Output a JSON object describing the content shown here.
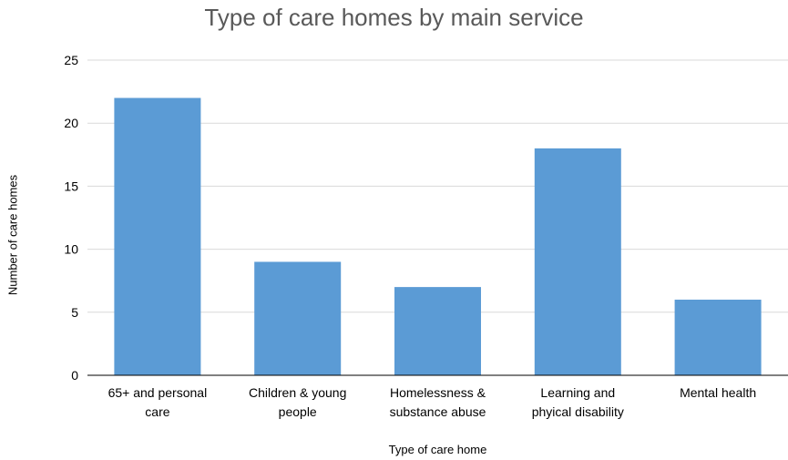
{
  "chart_data": {
    "type": "bar",
    "title": "Type of care homes by main service",
    "xlabel": "Type of care home",
    "ylabel": "Number of care homes",
    "categories": [
      [
        "65+ and personal",
        "care"
      ],
      [
        "Children & young",
        "people"
      ],
      [
        "Homelessness &",
        "substance abuse"
      ],
      [
        "Learning and",
        "phyical disability"
      ],
      [
        "Mental health"
      ]
    ],
    "values": [
      22,
      9,
      7,
      18,
      6
    ],
    "ylim": [
      0,
      25
    ],
    "yticks": [
      0,
      5,
      10,
      15,
      20,
      25
    ],
    "grid": true,
    "colors": {
      "bar": "#5b9bd5",
      "grid": "#d9d9d9",
      "axis": "#000000"
    }
  }
}
